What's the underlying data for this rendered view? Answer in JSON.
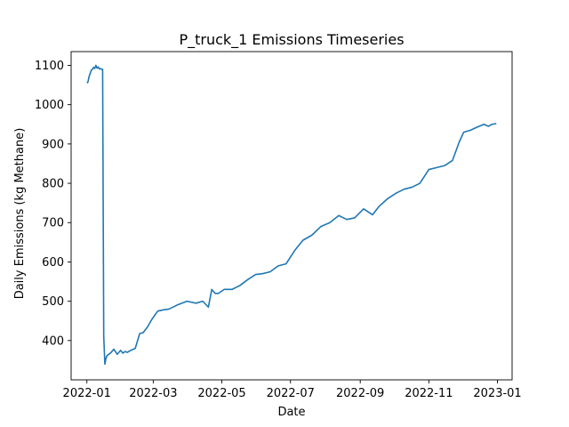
{
  "chart_data": {
    "type": "line",
    "title": "P_truck_1 Emissions Timeseries",
    "xlabel": "Date",
    "ylabel": "Daily Emissions (kg Methane)",
    "x_ticks": [
      "2022-01",
      "2022-03",
      "2022-05",
      "2022-07",
      "2022-09",
      "2022-11",
      "2023-01"
    ],
    "y_ticks": [
      400,
      500,
      600,
      700,
      800,
      900,
      1000,
      1100
    ],
    "xlim": [
      "2021-12-18",
      "2023-01-14"
    ],
    "ylim": [
      300,
      1135
    ],
    "grid": false,
    "color": "#1f77b4",
    "series": [
      {
        "x": [
          "2022-01-01",
          "2022-01-02",
          "2022-01-03",
          "2022-01-04",
          "2022-01-05",
          "2022-01-06",
          "2022-01-07",
          "2022-01-08",
          "2022-01-09",
          "2022-01-10",
          "2022-01-11",
          "2022-01-12",
          "2022-01-13",
          "2022-01-14",
          "2022-01-15",
          "2022-01-16",
          "2022-01-17",
          "2022-01-18",
          "2022-01-19",
          "2022-01-22",
          "2022-01-25",
          "2022-01-28",
          "2022-01-31",
          "2022-02-02",
          "2022-02-04",
          "2022-02-06",
          "2022-02-09",
          "2022-02-13",
          "2022-02-17",
          "2022-02-20",
          "2022-02-24",
          "2022-02-28",
          "2022-03-05",
          "2022-03-10",
          "2022-03-15",
          "2022-03-22",
          "2022-03-31",
          "2022-04-08",
          "2022-04-14",
          "2022-04-19",
          "2022-04-22",
          "2022-04-25",
          "2022-04-28",
          "2022-05-03",
          "2022-05-10",
          "2022-05-17",
          "2022-05-24",
          "2022-05-31",
          "2022-06-06",
          "2022-06-13",
          "2022-06-20",
          "2022-06-27",
          "2022-07-05",
          "2022-07-12",
          "2022-07-20",
          "2022-07-28",
          "2022-08-05",
          "2022-08-13",
          "2022-08-20",
          "2022-08-27",
          "2022-09-04",
          "2022-09-12",
          "2022-09-18",
          "2022-09-25",
          "2022-10-03",
          "2022-10-10",
          "2022-10-17",
          "2022-10-24",
          "2022-11-01",
          "2022-11-08",
          "2022-11-15",
          "2022-11-22",
          "2022-11-28",
          "2022-12-02",
          "2022-12-08",
          "2022-12-14",
          "2022-12-20",
          "2022-12-24",
          "2022-12-27",
          "2022-12-31"
        ],
        "y": [
          1055,
          1058,
          1072,
          1080,
          1088,
          1090,
          1095,
          1092,
          1100,
          1093,
          1096,
          1091,
          1092,
          1090,
          1090,
          410,
          340,
          355,
          362,
          368,
          378,
          365,
          375,
          368,
          372,
          370,
          375,
          380,
          418,
          420,
          435,
          455,
          475,
          478,
          480,
          490,
          500,
          495,
          500,
          485,
          530,
          520,
          520,
          530,
          530,
          540,
          555,
          568,
          570,
          575,
          590,
          595,
          630,
          655,
          668,
          690,
          700,
          718,
          708,
          712,
          735,
          720,
          742,
          760,
          775,
          785,
          790,
          800,
          835,
          840,
          845,
          858,
          905,
          930,
          935,
          943,
          950,
          945,
          950,
          952
        ]
      }
    ]
  }
}
